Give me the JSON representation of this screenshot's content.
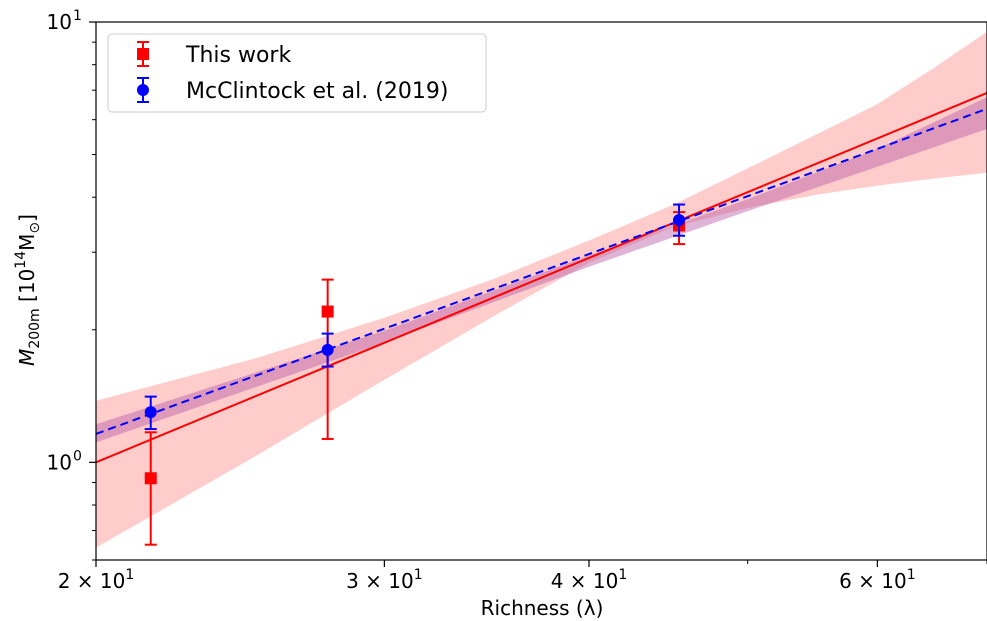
{
  "chart_data": {
    "type": "scatter",
    "xscale": "log",
    "yscale": "log",
    "xlim": [
      20,
      70
    ],
    "ylim": [
      0.6,
      10
    ],
    "xlabel": {
      "text": "Richness (λ)"
    },
    "ylabel": {
      "main": "M",
      "sub": "200m",
      "unit_open": " [10",
      "unit_sup": "14",
      "unit_main": "M",
      "unit_sub": "⊙",
      "unit_close": "]"
    },
    "xticks": [
      {
        "value": 20,
        "base": "2 × 10",
        "exp": "1"
      },
      {
        "value": 30,
        "base": "3 × 10",
        "exp": "1"
      },
      {
        "value": 40,
        "base": "4 × 10",
        "exp": "1"
      },
      {
        "value": 60,
        "base": "6 × 10",
        "exp": "1"
      }
    ],
    "xminor_ticks": [
      50,
      70
    ],
    "yticks": [
      {
        "value": 1,
        "base": "10",
        "exp": "0"
      },
      {
        "value": 10,
        "base": "10",
        "exp": "1"
      }
    ],
    "yminor_ticks": [
      0.6,
      0.7,
      0.8,
      0.9,
      2,
      3,
      4,
      5,
      6,
      7,
      8,
      9
    ],
    "legend": {
      "position": "top-left"
    },
    "series": [
      {
        "name": "This work",
        "color": "#ff0000",
        "marker": "square",
        "x": [
          21.6,
          27.7,
          45.4
        ],
        "y": [
          0.92,
          2.2,
          3.45
        ],
        "yerr_low": [
          0.65,
          1.13,
          3.13
        ],
        "yerr_high": [
          1.17,
          2.6,
          3.7
        ],
        "fit": {
          "style": "solid",
          "points": [
            [
              20,
              1.0
            ],
            [
              70,
              6.9
            ]
          ],
          "band_color": "#ffcccc",
          "band": [
            [
              20,
              0.64,
              1.38
            ],
            [
              25,
              1.03,
              1.72
            ],
            [
              30,
              1.54,
              2.13
            ],
            [
              35,
              2.15,
              2.61
            ],
            [
              40,
              2.84,
              3.19
            ],
            [
              45,
              3.42,
              3.84
            ],
            [
              50,
              3.78,
              4.65
            ],
            [
              55,
              4.05,
              5.54
            ],
            [
              60,
              4.25,
              6.51
            ],
            [
              65,
              4.41,
              7.87
            ],
            [
              70,
              4.55,
              9.5
            ]
          ]
        }
      },
      {
        "name": "McClintock et al. (2019)",
        "color": "#0000ff",
        "marker": "circle",
        "x": [
          21.6,
          27.7,
          45.4
        ],
        "y": [
          1.3,
          1.8,
          3.55
        ],
        "yerr_low": [
          1.19,
          1.65,
          3.27
        ],
        "yerr_high": [
          1.41,
          1.96,
          3.85
        ],
        "fit": {
          "style": "dashed",
          "points": [
            [
              20,
              1.16
            ],
            [
              70,
              6.35
            ]
          ],
          "band_color": "#b55ba5",
          "band_opacity": 0.45,
          "band": [
            [
              20,
              1.11,
              1.22
            ],
            [
              30,
              1.87,
              1.99
            ],
            [
              40,
              2.78,
              2.95
            ],
            [
              50,
              3.72,
              3.96
            ],
            [
              60,
              4.69,
              5.15
            ],
            [
              70,
              5.72,
              6.75
            ]
          ]
        }
      }
    ]
  }
}
